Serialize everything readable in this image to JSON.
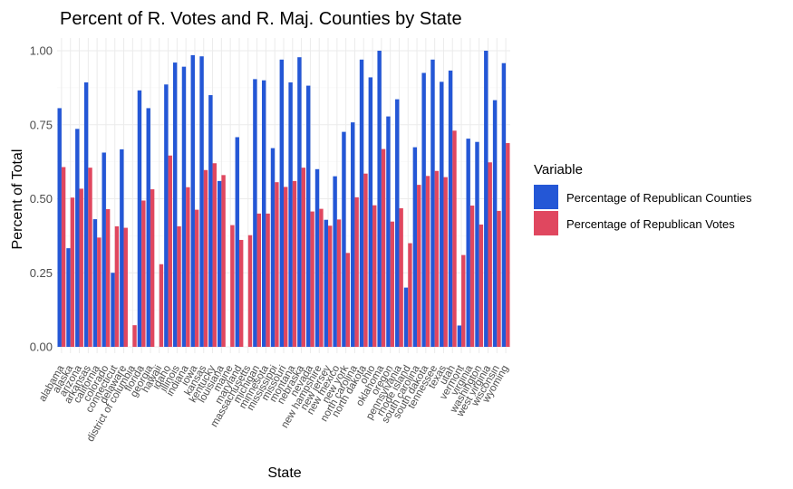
{
  "chart_data": {
    "type": "bar",
    "title": "Percent of R. Votes and R. Maj. Counties by State",
    "xlabel": "State",
    "ylabel": "Percent of Total",
    "ylim": [
      0,
      1.05
    ],
    "yticks": [
      "0.00",
      "0.25",
      "0.50",
      "0.75",
      "1.00"
    ],
    "legend_title": "Variable",
    "legend_position": "right",
    "grid": true,
    "categories": [
      "alabama",
      "alaska",
      "arizona",
      "arkansas",
      "california",
      "colorado",
      "connecticut",
      "delaware",
      "district of columbia",
      "florida",
      "georgia",
      "hawaii",
      "idaho",
      "illinois",
      "indiana",
      "iowa",
      "kansas",
      "kentucky",
      "louisiana",
      "maine",
      "maryland",
      "massachusetts",
      "michigan",
      "minnesota",
      "mississippi",
      "missouri",
      "montana",
      "nebraska",
      "nevada",
      "new hampshire",
      "new jersey",
      "new mexico",
      "new york",
      "north carolina",
      "north dakota",
      "ohio",
      "oklahoma",
      "oregon",
      "pennsylvania",
      "rhode island",
      "south carolina",
      "south dakota",
      "tennessee",
      "texas",
      "utah",
      "vermont",
      "virginia",
      "washington",
      "west virginia",
      "wisconsin",
      "wyoming"
    ],
    "series": [
      {
        "name": "Percentage of Republican Counties",
        "color": "#2457d6",
        "values": [
          0.806,
          0.333,
          0.736,
          0.893,
          0.431,
          0.656,
          0.25,
          0.667,
          0.0,
          0.866,
          0.806,
          0.0,
          0.886,
          0.96,
          0.946,
          0.985,
          0.981,
          0.85,
          0.56,
          0.0,
          0.708,
          0.0,
          0.904,
          0.9,
          0.671,
          0.97,
          0.893,
          0.978,
          0.882,
          0.6,
          0.429,
          0.576,
          0.726,
          0.758,
          0.97,
          0.91,
          1.0,
          0.778,
          0.836,
          0.2,
          0.674,
          0.925,
          0.97,
          0.895,
          0.933,
          0.072,
          0.703,
          0.692,
          1.0,
          0.833,
          0.958
        ]
      },
      {
        "name": "Percentage of Republican Votes",
        "color": "#e0475f",
        "values": [
          0.607,
          0.504,
          0.534,
          0.605,
          0.369,
          0.465,
          0.407,
          0.402,
          0.073,
          0.494,
          0.532,
          0.279,
          0.646,
          0.407,
          0.539,
          0.463,
          0.597,
          0.62,
          0.58,
          0.411,
          0.361,
          0.377,
          0.45,
          0.45,
          0.556,
          0.54,
          0.56,
          0.605,
          0.457,
          0.466,
          0.409,
          0.43,
          0.317,
          0.505,
          0.585,
          0.478,
          0.668,
          0.423,
          0.468,
          0.35,
          0.547,
          0.577,
          0.594,
          0.573,
          0.73,
          0.31,
          0.477,
          0.413,
          0.623,
          0.459,
          0.688
        ]
      }
    ]
  }
}
